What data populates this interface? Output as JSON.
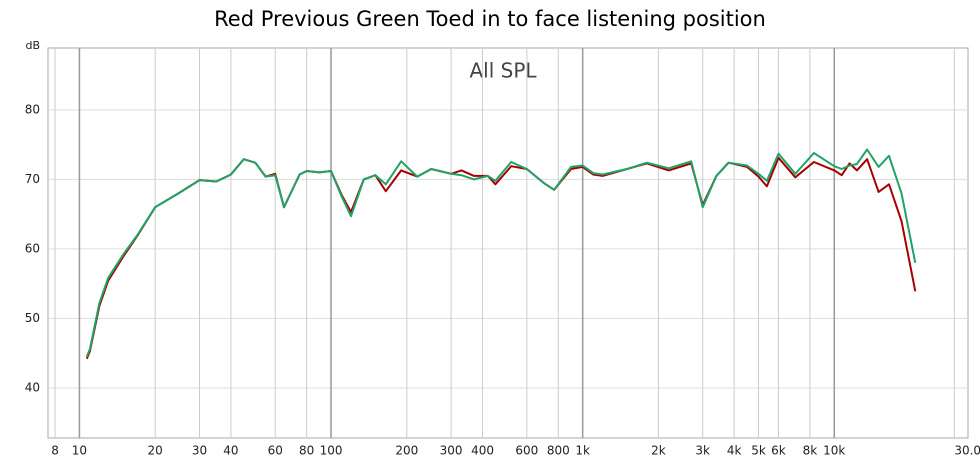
{
  "chart_data": {
    "type": "line",
    "title": "Red Previous Green Toed in to face listening position",
    "annotation": "All SPL",
    "y_label": "dB",
    "x_scale": "log",
    "grid": true,
    "xlim": [
      7.5,
      34000
    ],
    "ylim": [
      32.8,
      88.9
    ],
    "xticks": [
      8,
      10,
      20,
      30,
      40,
      60,
      80,
      100,
      200,
      300,
      400,
      600,
      800,
      {
        "value": 1000,
        "label": "1k"
      },
      {
        "value": 2000,
        "label": "2k"
      },
      {
        "value": 3000,
        "label": "3k"
      },
      {
        "value": 4000,
        "label": "4k"
      },
      {
        "value": 5000,
        "label": "5k"
      },
      {
        "value": 6000,
        "label": "6k"
      },
      {
        "value": 8000,
        "label": "8k"
      },
      {
        "value": 10000,
        "label": "10k"
      },
      {
        "value": 30000,
        "label": "30.0kHz"
      }
    ],
    "yticks": [
      40,
      50,
      60,
      70,
      80
    ],
    "x": [
      10.7,
      11,
      12,
      13,
      15,
      17,
      20,
      25,
      30,
      35,
      40,
      45,
      50,
      55,
      60,
      65,
      75,
      80,
      90,
      100,
      110,
      120,
      135,
      150,
      165,
      190,
      220,
      250,
      300,
      330,
      370,
      420,
      450,
      520,
      600,
      700,
      770,
      900,
      1000,
      1100,
      1200,
      1500,
      1800,
      2200,
      2700,
      3000,
      3400,
      3800,
      4500,
      5000,
      5400,
      6000,
      7000,
      8300,
      10000,
      10700,
      11500,
      12300,
      13500,
      15000,
      16500,
      18500,
      21000
    ],
    "series": [
      {
        "name": "Red Previous",
        "color": "#a80000",
        "values": [
          44.2,
          45.3,
          51.8,
          55.4,
          59.0,
          61.9,
          66.0,
          68.1,
          69.9,
          69.7,
          70.7,
          72.9,
          72.4,
          70.4,
          70.8,
          66.0,
          70.7,
          71.2,
          71.0,
          71.2,
          67.8,
          65.3,
          70.0,
          70.6,
          68.3,
          71.3,
          70.4,
          71.5,
          70.8,
          71.3,
          70.5,
          70.5,
          69.3,
          71.9,
          71.5,
          69.5,
          68.5,
          71.5,
          71.8,
          70.7,
          70.5,
          71.5,
          72.3,
          71.3,
          72.3,
          66.3,
          70.5,
          72.4,
          71.8,
          70.4,
          69.0,
          73.1,
          70.3,
          72.5,
          71.3,
          70.6,
          72.3,
          71.3,
          72.9,
          68.2,
          69.3,
          64.0,
          53.9
        ]
      },
      {
        "name": "Green Toed in",
        "color": "#1fa366",
        "values": [
          44.5,
          45.6,
          52.2,
          55.8,
          59.3,
          62.0,
          66.0,
          68.1,
          69.9,
          69.7,
          70.7,
          72.9,
          72.4,
          70.4,
          70.6,
          66.0,
          70.7,
          71.2,
          71.0,
          71.2,
          67.6,
          64.7,
          70.0,
          70.6,
          69.3,
          72.6,
          70.4,
          71.5,
          70.8,
          70.6,
          70.0,
          70.5,
          69.8,
          72.5,
          71.5,
          69.5,
          68.5,
          71.8,
          72.0,
          70.9,
          70.7,
          71.5,
          72.4,
          71.6,
          72.6,
          66.0,
          70.5,
          72.4,
          72.0,
          70.8,
          69.8,
          73.7,
          70.8,
          73.8,
          71.9,
          71.5,
          72.0,
          72.2,
          74.3,
          71.8,
          73.4,
          68.0,
          58.0
        ]
      }
    ]
  }
}
